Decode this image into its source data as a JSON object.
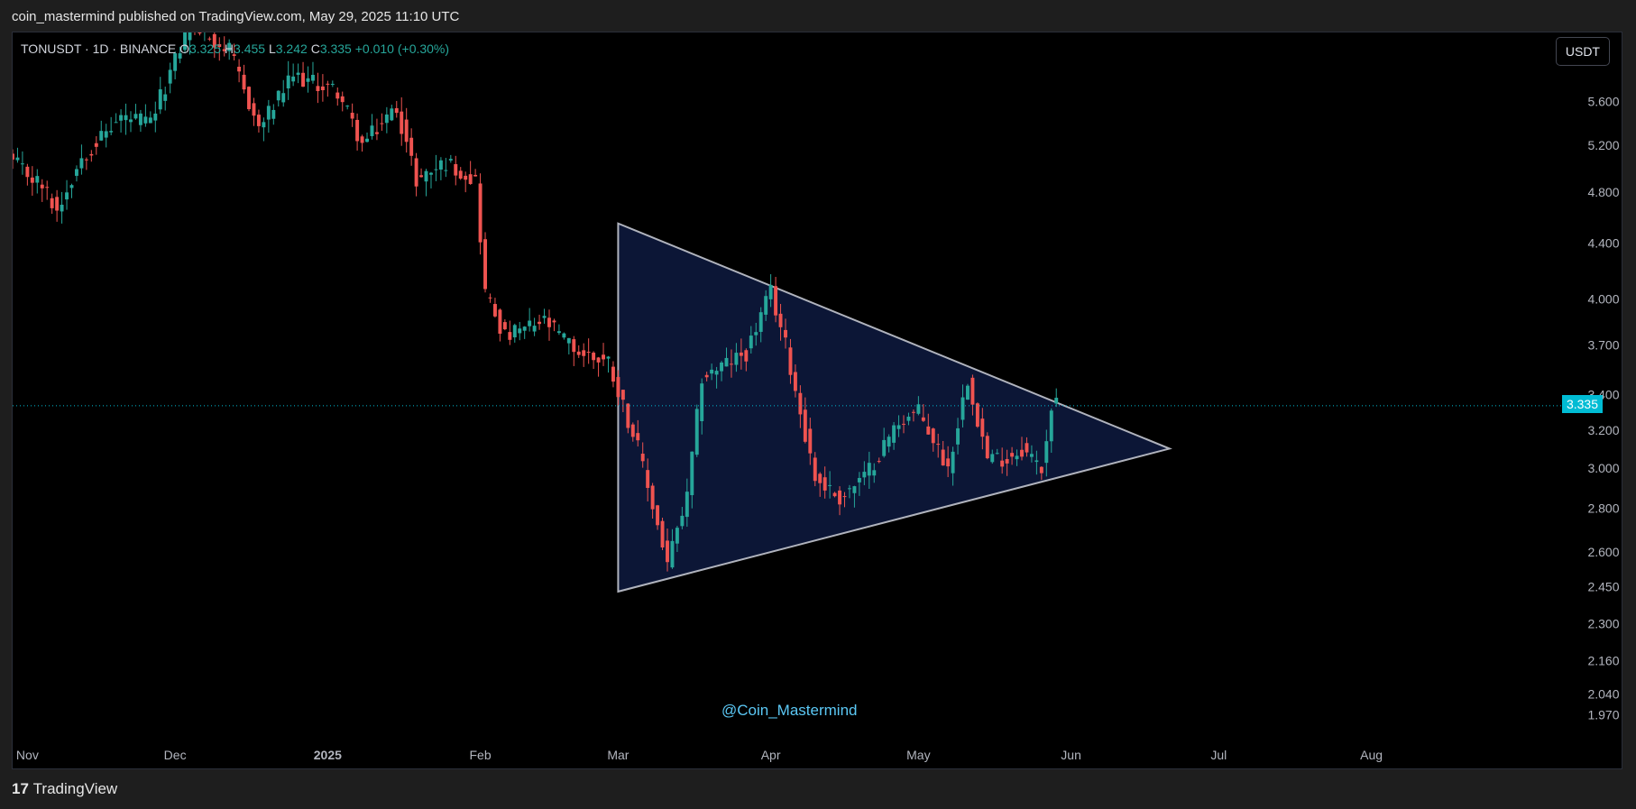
{
  "header": {
    "publish_line": "coin_mastermind published on TradingView.com, May 29, 2025 11:10 UTC"
  },
  "legend": {
    "symbol_line": "TONUSDT · 1D · BINANCE",
    "o_label": "O",
    "o_value": "3.325",
    "h_label": "H",
    "h_value": "3.455",
    "l_label": "L",
    "l_value": "3.242",
    "c_label": "C",
    "c_value": "3.335",
    "change": "+0.010 (+0.30%)"
  },
  "currency_button": "USDT",
  "last_price_badge": "3.335",
  "watermark": "@Coin_Mastermind",
  "footer": {
    "logo_mark": "17",
    "brand": "TradingView"
  },
  "colors": {
    "up": "#26a69a",
    "down": "#ef5350",
    "triangle_fill": "#0c1636",
    "triangle_stroke": "#b0b3bd",
    "price_line": "#00bcd4",
    "axis_text": "#b2b5be"
  },
  "chart_data": {
    "type": "candlestick",
    "symbol": "TONUSDT",
    "interval": "1D",
    "exchange": "BINANCE",
    "y_scale": "log",
    "ylim": [
      1.9,
      6.3
    ],
    "y_ticks": [
      "5.600",
      "5.200",
      "4.800",
      "4.400",
      "4.000",
      "3.700",
      "3.400",
      "3.200",
      "3.000",
      "2.800",
      "2.600",
      "2.450",
      "2.300",
      "2.160",
      "2.040",
      "1.970"
    ],
    "x_range": [
      "2024-10-29",
      "2025-09-08"
    ],
    "x_ticks": [
      {
        "label": "Nov",
        "date": "2024-11-01"
      },
      {
        "label": "Dec",
        "date": "2024-12-01"
      },
      {
        "label": "2025",
        "date": "2025-01-01"
      },
      {
        "label": "Feb",
        "date": "2025-02-01"
      },
      {
        "label": "Mar",
        "date": "2025-03-01"
      },
      {
        "label": "Apr",
        "date": "2025-04-01"
      },
      {
        "label": "May",
        "date": "2025-05-01"
      },
      {
        "label": "Jun",
        "date": "2025-06-01"
      },
      {
        "label": "Jul",
        "date": "2025-07-01"
      },
      {
        "label": "Aug",
        "date": "2025-08-01"
      }
    ],
    "last_price": 3.335,
    "close_anchors": [
      {
        "date": "2024-10-29",
        "close": 5.05
      },
      {
        "date": "2024-11-04",
        "close": 4.85
      },
      {
        "date": "2024-11-07",
        "close": 4.65
      },
      {
        "date": "2024-11-12",
        "close": 5.1
      },
      {
        "date": "2024-11-20",
        "close": 5.45
      },
      {
        "date": "2024-11-26",
        "close": 5.4
      },
      {
        "date": "2024-12-04",
        "close": 6.4
      },
      {
        "date": "2024-12-12",
        "close": 6.1
      },
      {
        "date": "2024-12-18",
        "close": 5.35
      },
      {
        "date": "2024-12-25",
        "close": 5.85
      },
      {
        "date": "2025-01-03",
        "close": 5.7
      },
      {
        "date": "2025-01-08",
        "close": 5.2
      },
      {
        "date": "2025-01-15",
        "close": 5.55
      },
      {
        "date": "2025-01-19",
        "close": 4.9
      },
      {
        "date": "2025-01-25",
        "close": 5.05
      },
      {
        "date": "2025-01-31",
        "close": 4.9
      },
      {
        "date": "2025-02-02",
        "close": 4.05
      },
      {
        "date": "2025-02-06",
        "close": 3.75
      },
      {
        "date": "2025-02-14",
        "close": 3.85
      },
      {
        "date": "2025-02-21",
        "close": 3.65
      },
      {
        "date": "2025-02-27",
        "close": 3.6
      },
      {
        "date": "2025-03-05",
        "close": 3.1
      },
      {
        "date": "2025-03-11",
        "close": 2.55
      },
      {
        "date": "2025-03-15",
        "close": 2.85
      },
      {
        "date": "2025-03-18",
        "close": 3.5
      },
      {
        "date": "2025-03-27",
        "close": 3.65
      },
      {
        "date": "2025-04-01",
        "close": 4.05
      },
      {
        "date": "2025-04-04",
        "close": 3.7
      },
      {
        "date": "2025-04-07",
        "close": 3.3
      },
      {
        "date": "2025-04-10",
        "close": 2.95
      },
      {
        "date": "2025-04-15",
        "close": 2.85
      },
      {
        "date": "2025-04-20",
        "close": 2.95
      },
      {
        "date": "2025-04-27",
        "close": 3.25
      },
      {
        "date": "2025-05-01",
        "close": 3.3
      },
      {
        "date": "2025-05-07",
        "close": 3.0
      },
      {
        "date": "2025-05-11",
        "close": 3.5
      },
      {
        "date": "2025-05-15",
        "close": 3.05
      },
      {
        "date": "2025-05-19",
        "close": 3.05
      },
      {
        "date": "2025-05-22",
        "close": 3.1
      },
      {
        "date": "2025-05-26",
        "close": 3.0
      },
      {
        "date": "2025-05-28",
        "close": 3.325
      },
      {
        "date": "2025-05-29",
        "close": 3.335
      }
    ],
    "annotations": [
      {
        "type": "triangle",
        "points": [
          {
            "date": "2025-03-01",
            "price": 4.55
          },
          {
            "date": "2025-06-21",
            "price": 3.1
          },
          {
            "date": "2025-03-01",
            "price": 2.43
          }
        ]
      }
    ]
  }
}
